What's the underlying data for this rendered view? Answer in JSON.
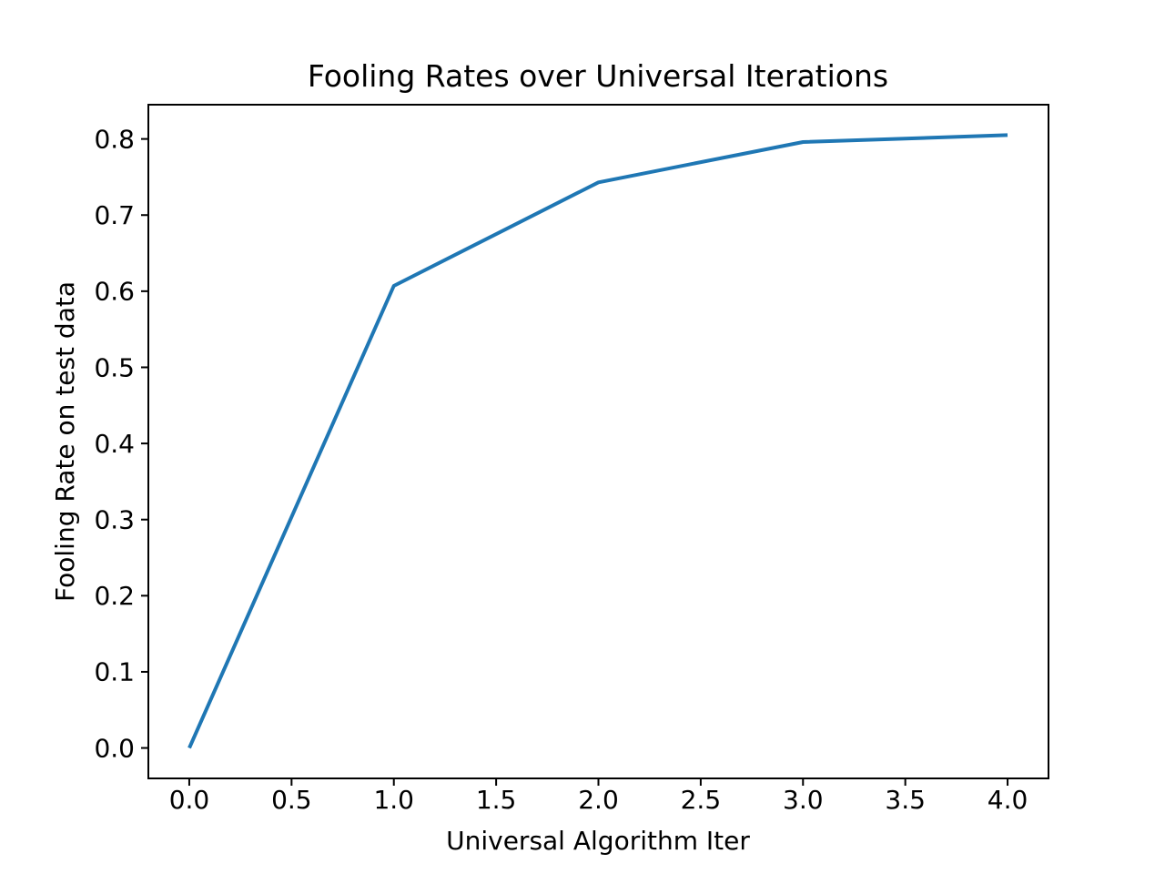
{
  "chart_data": {
    "type": "line",
    "title": "Fooling Rates over Universal Iterations",
    "xlabel": "Universal Algorithm Iter",
    "ylabel": "Fooling Rate on test data",
    "x": [
      0,
      1,
      2,
      3,
      4
    ],
    "y": [
      0.0,
      0.607,
      0.743,
      0.796,
      0.805
    ],
    "xlim": [
      -0.2,
      4.2
    ],
    "ylim": [
      -0.04,
      0.845
    ],
    "xticks": {
      "values": [
        0.0,
        0.5,
        1.0,
        1.5,
        2.0,
        2.5,
        3.0,
        3.5,
        4.0
      ],
      "labels": [
        "0.0",
        "0.5",
        "1.0",
        "1.5",
        "2.0",
        "2.5",
        "3.0",
        "3.5",
        "4.0"
      ]
    },
    "yticks": {
      "values": [
        0.0,
        0.1,
        0.2,
        0.3,
        0.4,
        0.5,
        0.6,
        0.7,
        0.8
      ],
      "labels": [
        "0.0",
        "0.1",
        "0.2",
        "0.3",
        "0.4",
        "0.5",
        "0.6",
        "0.7",
        "0.8"
      ]
    },
    "line_color": "#1f77b4",
    "grid": false,
    "legend": null,
    "background_color": "#ffffff"
  }
}
